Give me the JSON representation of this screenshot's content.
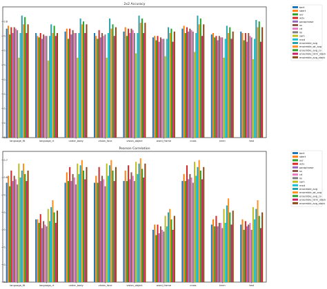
{
  "chart_data": [
    {
      "type": "bar",
      "title": "2x2 Accuracy",
      "xlabel": "",
      "ylabel": "",
      "ylim": [
        0,
        0.9
      ],
      "yticks": [
        "0.0",
        "0.1",
        "0.2",
        "0.3",
        "0.4",
        "0.5",
        "0.6",
        "0.7",
        "0.8"
      ],
      "grid": false,
      "legend_placement": "outside top-right",
      "categories": [
        "language_fit",
        "language_rt",
        "under_body",
        "vision_face",
        "vision_object",
        "word_frame",
        "cross",
        "term",
        "test"
      ],
      "series": [
        {
          "name": "bert",
          "values": [
            0.75,
            0.72,
            0.73,
            0.72,
            0.73,
            0.69,
            0.75,
            0.71,
            0.73
          ]
        },
        {
          "name": "sbert",
          "values": [
            0.77,
            0.7,
            0.75,
            0.7,
            0.76,
            0.7,
            0.77,
            0.72,
            0.72
          ]
        },
        {
          "name": "avr",
          "values": [
            0.71,
            0.69,
            0.68,
            0.68,
            0.7,
            0.67,
            0.72,
            0.69,
            0.67
          ]
        },
        {
          "name": "w2v",
          "values": [
            0.76,
            0.72,
            0.75,
            0.74,
            0.75,
            0.7,
            0.76,
            0.7,
            0.72
          ]
        },
        {
          "name": "paraphrase",
          "values": [
            0.72,
            0.68,
            0.71,
            0.69,
            0.72,
            0.66,
            0.73,
            0.67,
            0.66
          ]
        },
        {
          "name": "ss",
          "values": [
            0.76,
            0.71,
            0.74,
            0.72,
            0.75,
            0.69,
            0.75,
            0.7,
            0.72
          ]
        },
        {
          "name": "cd",
          "values": [
            0.75,
            0.7,
            0.72,
            0.7,
            0.74,
            0.68,
            0.74,
            0.69,
            0.7
          ]
        },
        {
          "name": "lin",
          "values": [
            0.74,
            0.7,
            0.72,
            0.71,
            0.72,
            0.68,
            0.73,
            0.69,
            0.69
          ]
        },
        {
          "name": "sam",
          "values": [
            0.55,
            0.53,
            0.55,
            0.55,
            0.58,
            0.56,
            0.59,
            0.55,
            0.54
          ]
        },
        {
          "name": "med",
          "values": [
            0.72,
            0.7,
            0.72,
            0.72,
            0.72,
            0.68,
            0.72,
            0.68,
            0.68
          ]
        },
        {
          "name": "ensemble_avg",
          "values": [
            0.84,
            0.78,
            0.82,
            0.82,
            0.84,
            0.76,
            0.84,
            0.77,
            0.81
          ]
        },
        {
          "name": "ensemble_wt_avg",
          "values": [
            0.78,
            0.72,
            0.78,
            0.75,
            0.79,
            0.72,
            0.78,
            0.72,
            0.76
          ]
        },
        {
          "name": "ensemble_avg_cv",
          "values": [
            0.83,
            0.77,
            0.8,
            0.78,
            0.82,
            0.75,
            0.82,
            0.76,
            0.8
          ]
        },
        {
          "name": "ensemble_lstm_stack",
          "values": [
            0.72,
            0.7,
            0.72,
            0.7,
            0.72,
            0.66,
            0.7,
            0.68,
            0.66
          ]
        },
        {
          "name": "ensemble_avg_stack",
          "values": [
            0.78,
            0.72,
            0.78,
            0.76,
            0.79,
            0.73,
            0.78,
            0.73,
            0.76
          ]
        }
      ]
    },
    {
      "type": "bar",
      "title": "Pearson Correlation",
      "xlabel": "",
      "ylabel": "",
      "ylim": [
        0,
        0.75
      ],
      "yticks": [
        "0.0",
        "0.1",
        "0.2",
        "0.3",
        "0.4",
        "0.5",
        "0.6",
        "0.7"
      ],
      "grid": false,
      "legend_placement": "outside top-right",
      "categories": [
        "language_fit",
        "language_rt",
        "under_body",
        "vision_face",
        "vision_object",
        "word_frame",
        "cross",
        "term",
        "test"
      ],
      "series": [
        {
          "name": "bert",
          "values": [
            0.57,
            0.36,
            0.57,
            0.57,
            0.58,
            0.3,
            0.58,
            0.33,
            0.33
          ]
        },
        {
          "name": "sbert",
          "values": [
            0.61,
            0.36,
            0.63,
            0.61,
            0.64,
            0.33,
            0.62,
            0.36,
            0.36
          ]
        },
        {
          "name": "avr",
          "values": [
            0.55,
            0.34,
            0.58,
            0.57,
            0.58,
            0.27,
            0.58,
            0.32,
            0.3
          ]
        },
        {
          "name": "w2v",
          "values": [
            0.64,
            0.39,
            0.66,
            0.66,
            0.67,
            0.33,
            0.67,
            0.38,
            0.35
          ]
        },
        {
          "name": "paraphrase",
          "values": [
            0.58,
            0.31,
            0.58,
            0.58,
            0.59,
            0.28,
            0.59,
            0.32,
            0.32
          ]
        },
        {
          "name": "ss",
          "values": [
            0.61,
            0.35,
            0.62,
            0.61,
            0.63,
            0.32,
            0.62,
            0.34,
            0.33
          ]
        },
        {
          "name": "cd",
          "values": [
            0.59,
            0.33,
            0.6,
            0.59,
            0.61,
            0.3,
            0.6,
            0.34,
            0.34
          ]
        },
        {
          "name": "lin",
          "values": [
            0.56,
            0.32,
            0.56,
            0.55,
            0.58,
            0.29,
            0.57,
            0.31,
            0.3
          ]
        },
        {
          "name": "sam",
          "values": [
            0.68,
            0.42,
            0.68,
            0.68,
            0.69,
            0.38,
            0.69,
            0.42,
            0.43
          ]
        },
        {
          "name": "med",
          "values": [
            0.6,
            0.35,
            0.62,
            0.61,
            0.62,
            0.32,
            0.61,
            0.34,
            0.36
          ]
        },
        {
          "name": "ensemble_avg",
          "values": [
            0.64,
            0.43,
            0.67,
            0.67,
            0.68,
            0.4,
            0.66,
            0.44,
            0.42
          ]
        },
        {
          "name": "ensemble_wt_avg",
          "values": [
            0.68,
            0.47,
            0.7,
            0.7,
            0.71,
            0.42,
            0.7,
            0.48,
            0.47
          ]
        },
        {
          "name": "ensemble_avg_cv",
          "values": [
            0.62,
            0.4,
            0.64,
            0.64,
            0.65,
            0.36,
            0.64,
            0.4,
            0.38
          ]
        },
        {
          "name": "ensemble_lstm_stack",
          "values": [
            0.58,
            0.34,
            0.59,
            0.58,
            0.6,
            0.3,
            0.59,
            0.33,
            0.31
          ]
        },
        {
          "name": "ensemble_avg_stack",
          "values": [
            0.64,
            0.41,
            0.66,
            0.66,
            0.68,
            0.38,
            0.66,
            0.41,
            0.4
          ]
        }
      ]
    }
  ],
  "colors": [
    "#1f77b4",
    "#ff7f0e",
    "#2ca02c",
    "#d62728",
    "#9467bd",
    "#8c564b",
    "#e377c2",
    "#7f7f7f",
    "#bcbd22",
    "#17becf",
    "#2aa3a8",
    "#ff9020",
    "#2b9e2b",
    "#c81e63",
    "#8b4513"
  ]
}
